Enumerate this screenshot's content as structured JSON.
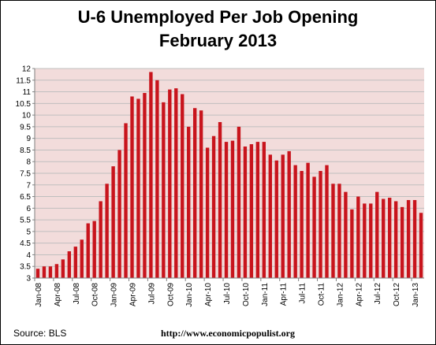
{
  "header": {
    "title": "U-6 Unemployed Per Job Opening",
    "subtitle": "February 2013"
  },
  "footer": {
    "source": "Source:  BLS",
    "url": "http://www.economicpopulist.org"
  },
  "colors": {
    "bar_fill": "#c8141c",
    "plot_background": "#f2dcdb",
    "gridline": "#bfbfbf",
    "axis": "#808080"
  },
  "chart_data": {
    "type": "bar",
    "title": "U-6 Unemployed Per Job Opening",
    "subtitle": "February 2013",
    "xlabel": "",
    "ylabel": "",
    "ylim": [
      3,
      12
    ],
    "y_ticks": [
      "3",
      "3.5",
      "4",
      "4.5",
      "5",
      "5.5",
      "6",
      "6.5",
      "7",
      "7.5",
      "8",
      "8.5",
      "9",
      "9.5",
      "10",
      "10.5",
      "11",
      "11.5",
      "12"
    ],
    "grid": true,
    "legend": "none",
    "x_tick_labels": [
      {
        "index": 0,
        "label": "Jan-08"
      },
      {
        "index": 3,
        "label": "Apr-08"
      },
      {
        "index": 6,
        "label": "Jul-08"
      },
      {
        "index": 9,
        "label": "Oct-08"
      },
      {
        "index": 12,
        "label": "Jan-09"
      },
      {
        "index": 15,
        "label": "Apr-09"
      },
      {
        "index": 18,
        "label": "Jul-09"
      },
      {
        "index": 21,
        "label": "Oct-09"
      },
      {
        "index": 24,
        "label": "Jan-10"
      },
      {
        "index": 27,
        "label": "Apr-10"
      },
      {
        "index": 30,
        "label": "Jul-10"
      },
      {
        "index": 33,
        "label": "Oct-10"
      },
      {
        "index": 36,
        "label": "Jan-11"
      },
      {
        "index": 39,
        "label": "Apr-11"
      },
      {
        "index": 42,
        "label": "Jul-11"
      },
      {
        "index": 45,
        "label": "Oct-11"
      },
      {
        "index": 48,
        "label": "Jan-12"
      },
      {
        "index": 51,
        "label": "Apr-12"
      },
      {
        "index": 54,
        "label": "Jul-12"
      },
      {
        "index": 57,
        "label": "Oct-12"
      },
      {
        "index": 60,
        "label": "Jan-13"
      }
    ],
    "categories": [
      "Jan-08",
      "Feb-08",
      "Mar-08",
      "Apr-08",
      "May-08",
      "Jun-08",
      "Jul-08",
      "Aug-08",
      "Sep-08",
      "Oct-08",
      "Nov-08",
      "Dec-08",
      "Jan-09",
      "Feb-09",
      "Mar-09",
      "Apr-09",
      "May-09",
      "Jun-09",
      "Jul-09",
      "Aug-09",
      "Sep-09",
      "Oct-09",
      "Nov-09",
      "Dec-09",
      "Jan-10",
      "Feb-10",
      "Mar-10",
      "Apr-10",
      "May-10",
      "Jun-10",
      "Jul-10",
      "Aug-10",
      "Sep-10",
      "Oct-10",
      "Nov-10",
      "Dec-10",
      "Jan-11",
      "Feb-11",
      "Mar-11",
      "Apr-11",
      "May-11",
      "Jun-11",
      "Jul-11",
      "Aug-11",
      "Sep-11",
      "Oct-11",
      "Nov-11",
      "Dec-11",
      "Jan-12",
      "Feb-12",
      "Mar-12",
      "Apr-12",
      "May-12",
      "Jun-12",
      "Jul-12",
      "Aug-12",
      "Sep-12",
      "Oct-12",
      "Nov-12",
      "Dec-12",
      "Jan-13",
      "Feb-13"
    ],
    "values": [
      3.4,
      3.5,
      3.5,
      3.6,
      3.8,
      4.15,
      4.35,
      4.65,
      5.35,
      5.45,
      6.3,
      7.05,
      7.8,
      8.5,
      9.65,
      10.8,
      10.7,
      10.95,
      11.85,
      11.5,
      10.55,
      11.1,
      11.15,
      10.9,
      9.5,
      10.3,
      10.2,
      8.6,
      9.1,
      9.7,
      8.85,
      8.9,
      9.5,
      8.65,
      8.75,
      8.85,
      8.85,
      8.3,
      8.05,
      8.3,
      8.45,
      7.85,
      7.6,
      7.95,
      7.35,
      7.6,
      7.85,
      7.05,
      7.05,
      6.7,
      5.95,
      6.5,
      6.2,
      6.2,
      6.7,
      6.4,
      6.45,
      6.3,
      6.05,
      6.35,
      6.35,
      5.8
    ]
  }
}
